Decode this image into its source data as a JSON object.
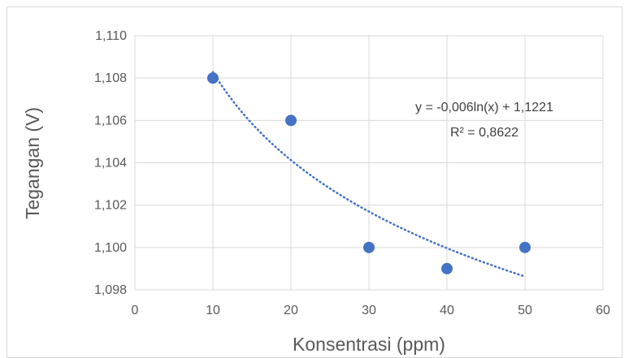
{
  "chart_data": {
    "type": "scatter",
    "title": "",
    "xlabel": "Konsentrasi (ppm)",
    "ylabel": "Tegangan (V)",
    "xlim": [
      0,
      60
    ],
    "ylim": [
      1.098,
      1.11
    ],
    "x_ticks": [
      0,
      10,
      20,
      30,
      40,
      50,
      60
    ],
    "x_tick_labels": [
      "0",
      "10",
      "20",
      "30",
      "40",
      "50",
      "60"
    ],
    "y_ticks": [
      1.098,
      1.1,
      1.102,
      1.104,
      1.106,
      1.108,
      1.11
    ],
    "y_tick_labels": [
      "1,098",
      "1,100",
      "1,102",
      "1,104",
      "1,106",
      "1,108",
      "1,110"
    ],
    "grid": "both",
    "legend": "none",
    "series": [
      {
        "x": [
          10,
          20,
          30,
          40,
          50
        ],
        "y": [
          1.108,
          1.106,
          1.1,
          1.099,
          1.1
        ],
        "color": "#4472C4"
      }
    ],
    "trendline": {
      "type": "logarithmic",
      "a": -0.006,
      "b": 1.1221,
      "x_range": [
        10,
        50
      ],
      "style": "dotted",
      "color": "#4472C4"
    },
    "annotations": {
      "equation": "y = -0,006ln(x) + 1,1221",
      "r_squared": "R² = 0,8622"
    }
  }
}
